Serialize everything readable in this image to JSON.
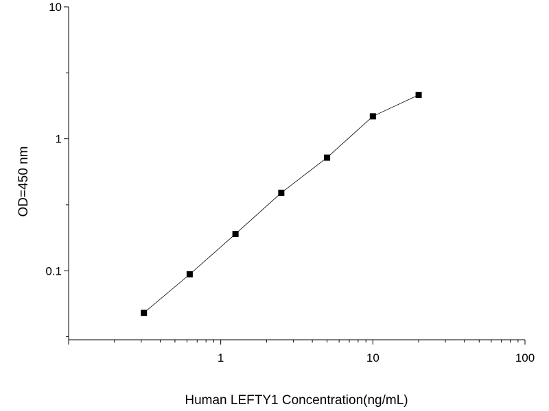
{
  "chart_data": {
    "type": "scatter",
    "title": "",
    "xlabel": "Human LEFTY1 Concentration(ng/mL)",
    "ylabel": "OD=450 nm",
    "xscale": "log",
    "yscale": "log",
    "xlim": [
      0.1,
      100
    ],
    "ylim": [
      0.03,
      10
    ],
    "x_tick_labels": [
      "1",
      "10",
      "100"
    ],
    "y_tick_labels": [
      "0.1",
      "1",
      "10"
    ],
    "grid": false,
    "legend": "none",
    "line_connected": true,
    "marker": "square",
    "color": "#000000",
    "series": [
      {
        "x": [
          0.3125,
          0.625,
          1.25,
          2.5,
          5,
          10,
          20
        ],
        "y": [
          0.048,
          0.094,
          0.19,
          0.39,
          0.72,
          1.48,
          2.15
        ]
      }
    ]
  }
}
